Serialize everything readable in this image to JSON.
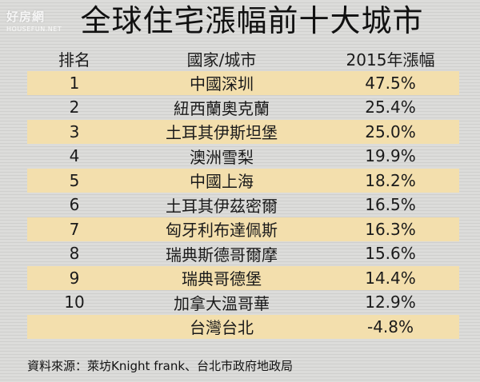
{
  "logo": {
    "name": "好房網",
    "url": "HOUSEFUN.NET"
  },
  "title": "全球住宅漲幅前十大城市",
  "table": {
    "headers": {
      "rank": "排名",
      "city": "國家/城市",
      "rate": "2015年漲幅"
    },
    "rows": [
      {
        "rank": "1",
        "city": "中國深圳",
        "rate": "47.5%"
      },
      {
        "rank": "2",
        "city": "紐西蘭奧克蘭",
        "rate": "25.4%"
      },
      {
        "rank": "3",
        "city": "土耳其伊斯坦堡",
        "rate": "25.0%"
      },
      {
        "rank": "4",
        "city": "澳洲雪梨",
        "rate": "19.9%"
      },
      {
        "rank": "5",
        "city": "中國上海",
        "rate": "18.2%"
      },
      {
        "rank": "6",
        "city": "土耳其伊茲密爾",
        "rate": "16.5%"
      },
      {
        "rank": "7",
        "city": "匈牙利布達佩斯",
        "rate": "16.3%"
      },
      {
        "rank": "8",
        "city": "瑞典斯德哥爾摩",
        "rate": "15.6%"
      },
      {
        "rank": "9",
        "city": "瑞典哥德堡",
        "rate": "14.4%"
      },
      {
        "rank": "10",
        "city": "加拿大溫哥華",
        "rate": "12.9%"
      },
      {
        "rank": "",
        "city": "台灣台北",
        "rate": "-4.8%"
      }
    ]
  },
  "source": "資料來源：萊坊Knight frank、台北市政府地政局",
  "colors": {
    "highlight_row": "#f3dfad",
    "background": "#d9d9d7"
  }
}
